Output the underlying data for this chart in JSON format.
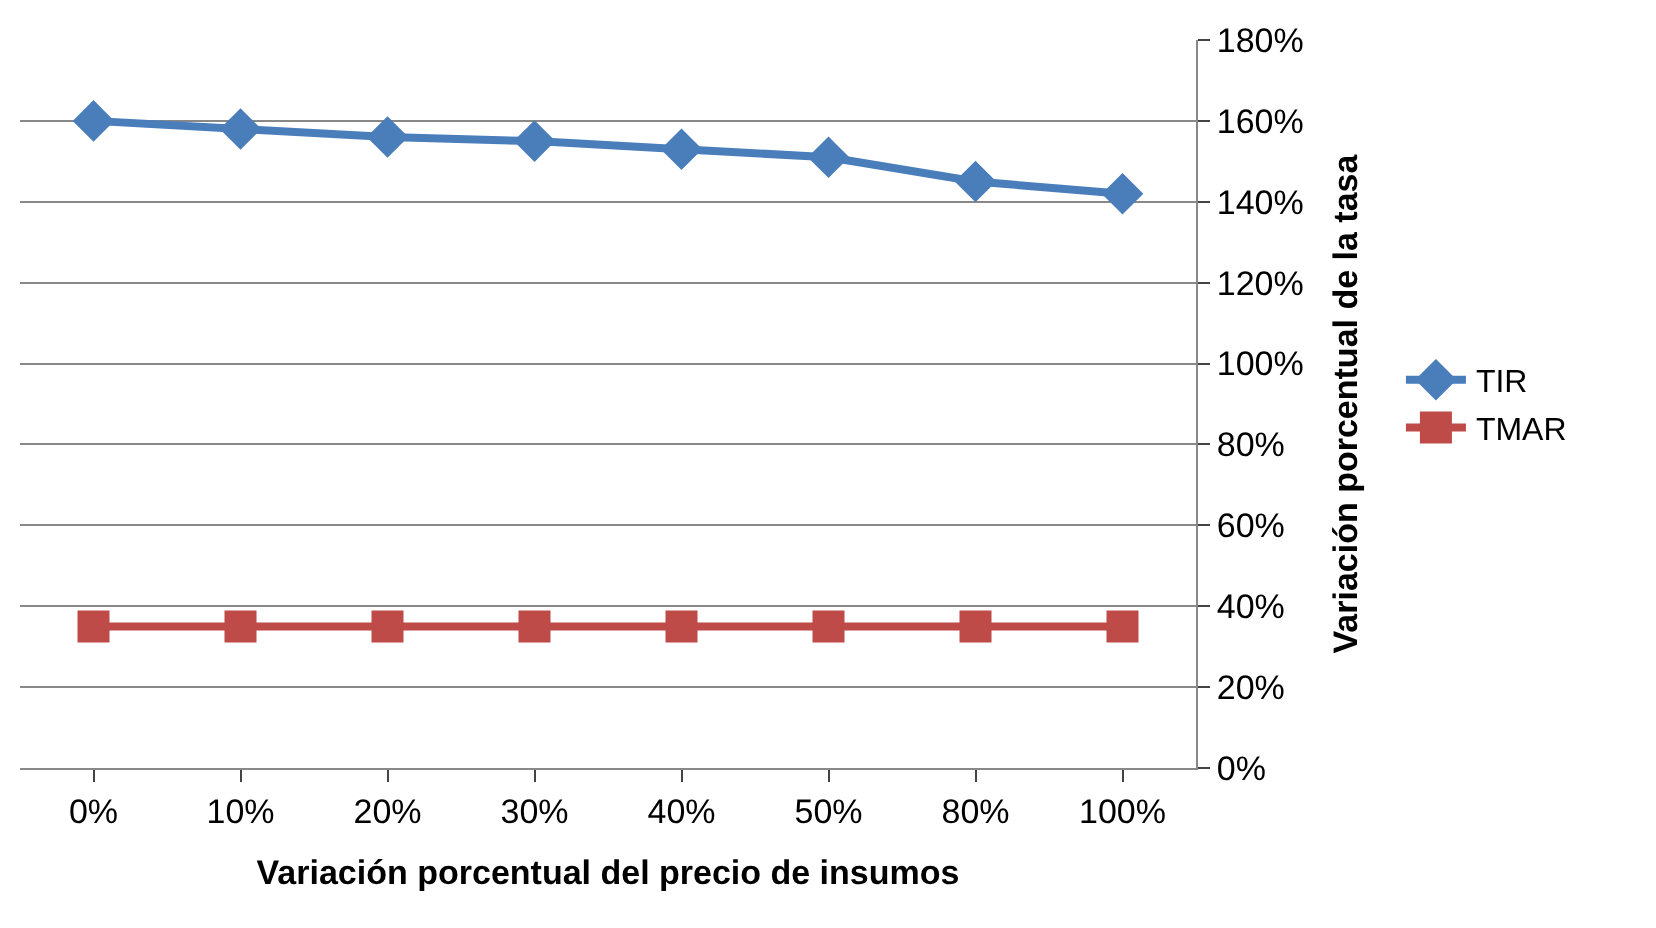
{
  "chart_data": {
    "type": "line",
    "xlabel": "Variación porcentual del precio de insumos",
    "ylabel": "Variación porcentual de la tasa",
    "categories": [
      "0%",
      "10%",
      "20%",
      "30%",
      "40%",
      "50%",
      "80%",
      "100%"
    ],
    "series": [
      {
        "name": "TIR",
        "color": "#4a7ebb",
        "marker": "diamond",
        "values": [
          160,
          158,
          156,
          155,
          153,
          151,
          145,
          142
        ]
      },
      {
        "name": "TMAR",
        "color": "#be4b48",
        "marker": "square",
        "values": [
          35,
          35,
          35,
          35,
          35,
          35,
          35,
          35
        ]
      }
    ],
    "ylim": [
      0,
      180
    ],
    "yticks": [
      {
        "value": 0,
        "label": "0%"
      },
      {
        "value": 20,
        "label": "20%"
      },
      {
        "value": 40,
        "label": "40%"
      },
      {
        "value": 60,
        "label": "60%"
      },
      {
        "value": 80,
        "label": "80%"
      },
      {
        "value": 100,
        "label": "100%"
      },
      {
        "value": 120,
        "label": "120%"
      },
      {
        "value": 140,
        "label": "140%"
      },
      {
        "value": 160,
        "label": "160%"
      },
      {
        "value": 180,
        "label": "180%"
      }
    ],
    "grid": "y",
    "legend": "right",
    "line_style": "solid"
  }
}
